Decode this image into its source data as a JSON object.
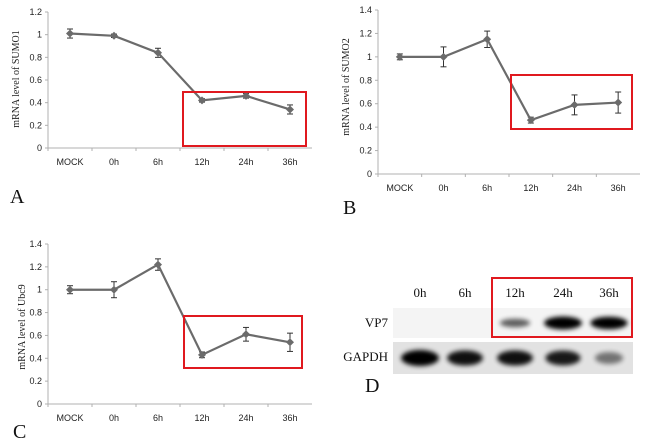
{
  "chart_data": [
    {
      "type": "line",
      "panel": "A",
      "ylabel": "mRNA level of SUMO1",
      "categories": [
        "MOCK",
        "0h",
        "6h",
        "12h",
        "24h",
        "36h"
      ],
      "values": [
        1.01,
        0.99,
        0.84,
        0.42,
        0.46,
        0.34
      ],
      "errors": [
        0.04,
        0.015,
        0.04,
        0.015,
        0.02,
        0.04
      ],
      "ylim": [
        0,
        1.2
      ],
      "yticks": [
        "0",
        "0.2",
        "0.4",
        "0.6",
        "0.8",
        "1",
        "1.2"
      ],
      "line_color": "#6b6b6b",
      "highlight_color": "#e0191f"
    },
    {
      "type": "line",
      "panel": "B",
      "ylabel": "mRNA level of SUMO2",
      "categories": [
        "MOCK",
        "0h",
        "6h",
        "12h",
        "24h",
        "36h"
      ],
      "values": [
        1.0,
        1.0,
        1.15,
        0.46,
        0.59,
        0.61
      ],
      "errors": [
        0.025,
        0.085,
        0.07,
        0.025,
        0.085,
        0.09
      ],
      "ylim": [
        0,
        1.4
      ],
      "yticks": [
        "0",
        "0.2",
        "0.4",
        "0.6",
        "0.8",
        "1",
        "1.2",
        "1.4"
      ],
      "line_color": "#6b6b6b",
      "highlight_color": "#e0191f"
    },
    {
      "type": "line",
      "panel": "C",
      "ylabel": "mRNA level of Ubc9",
      "categories": [
        "MOCK",
        "0h",
        "6h",
        "12h",
        "24h",
        "36h"
      ],
      "values": [
        1.0,
        1.0,
        1.22,
        0.43,
        0.61,
        0.54
      ],
      "errors": [
        0.035,
        0.07,
        0.05,
        0.025,
        0.06,
        0.08
      ],
      "ylim": [
        0,
        1.4
      ],
      "yticks": [
        "0",
        "0.2",
        "0.4",
        "0.6",
        "0.8",
        "1",
        "1.2",
        "1.4"
      ],
      "line_color": "#6b6b6b",
      "highlight_color": "#e0191f"
    }
  ],
  "blot": {
    "panel": "D",
    "lanes": [
      "0h",
      "6h",
      "12h",
      "24h",
      "36h"
    ],
    "rows": [
      {
        "label": "VP7",
        "intensity": [
          0.0,
          0.0,
          0.45,
          1.0,
          0.95
        ]
      },
      {
        "label": "GAPDH",
        "intensity": [
          1.0,
          0.85,
          0.85,
          0.8,
          0.3
        ]
      }
    ],
    "highlight_color": "#e0191f"
  }
}
